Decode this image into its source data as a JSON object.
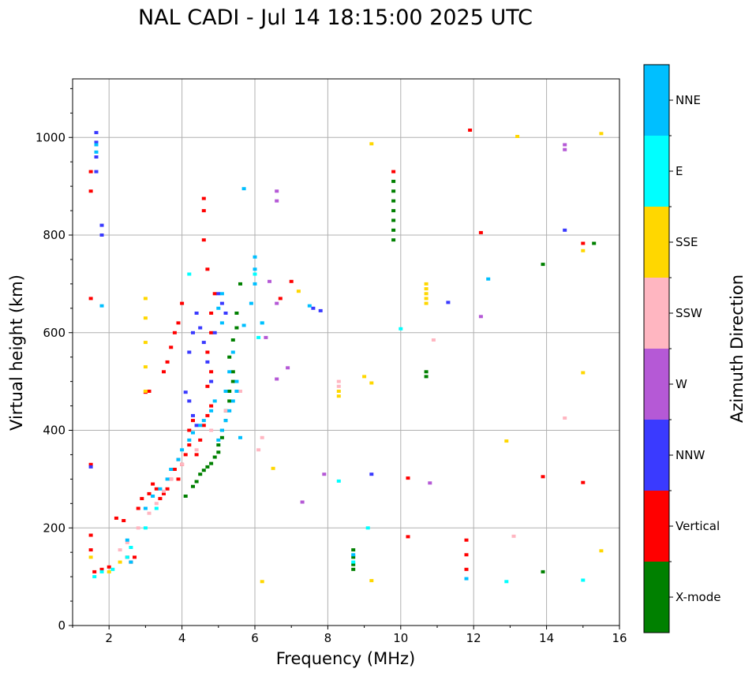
{
  "chart_data": {
    "type": "scatter",
    "title": "NAL CADI - Jul 14 18:15:00 2025 UTC",
    "xlabel": "Frequency (MHz)",
    "ylabel": "Virtual height (km)",
    "xlim": [
      1,
      16
    ],
    "ylim": [
      0,
      1120
    ],
    "xticks": [
      2,
      4,
      6,
      8,
      10,
      12,
      14,
      16
    ],
    "yticks": [
      0,
      200,
      400,
      600,
      800,
      1000
    ],
    "grid": true,
    "colorbar": {
      "title": "Azimuth Direction",
      "categories": [
        {
          "label": "X-mode",
          "color": "#008000"
        },
        {
          "label": "Vertical",
          "color": "#ff0000"
        },
        {
          "label": "NNW",
          "color": "#3a3aff"
        },
        {
          "label": "W",
          "color": "#b559d6"
        },
        {
          "label": "SSW",
          "color": "#ffb6c1"
        },
        {
          "label": "SSE",
          "color": "#ffd700"
        },
        {
          "label": "E",
          "color": "#00ffff"
        },
        {
          "label": "NNE",
          "color": "#00bfff"
        }
      ]
    },
    "series": [
      {
        "name": "X-mode",
        "points": [
          [
            4.1,
            265
          ],
          [
            4.3,
            285
          ],
          [
            4.4,
            295
          ],
          [
            4.5,
            310
          ],
          [
            4.6,
            318
          ],
          [
            4.7,
            325
          ],
          [
            4.8,
            332
          ],
          [
            4.9,
            345
          ],
          [
            5.0,
            355
          ],
          [
            5.0,
            370
          ],
          [
            5.1,
            385
          ],
          [
            5.1,
            400
          ],
          [
            5.2,
            420
          ],
          [
            5.2,
            440
          ],
          [
            5.3,
            460
          ],
          [
            5.3,
            480
          ],
          [
            5.4,
            500
          ],
          [
            5.4,
            520
          ],
          [
            5.3,
            550
          ],
          [
            5.4,
            585
          ],
          [
            5.5,
            610
          ],
          [
            5.5,
            640
          ],
          [
            5.6,
            700
          ],
          [
            9.8,
            790
          ],
          [
            9.8,
            810
          ],
          [
            9.8,
            830
          ],
          [
            9.8,
            850
          ],
          [
            9.8,
            870
          ],
          [
            9.8,
            890
          ],
          [
            9.8,
            910
          ],
          [
            10.7,
            510
          ],
          [
            10.7,
            520
          ],
          [
            8.7,
            115
          ],
          [
            8.7,
            125
          ],
          [
            8.7,
            140
          ],
          [
            8.7,
            155
          ],
          [
            13.9,
            110
          ],
          [
            13.9,
            740
          ],
          [
            15.3,
            783
          ]
        ]
      },
      {
        "name": "Vertical",
        "points": [
          [
            1.5,
            930
          ],
          [
            1.5,
            890
          ],
          [
            1.5,
            670
          ],
          [
            1.5,
            330
          ],
          [
            1.5,
            185
          ],
          [
            1.5,
            155
          ],
          [
            1.6,
            110
          ],
          [
            1.8,
            115
          ],
          [
            2.0,
            120
          ],
          [
            2.2,
            220
          ],
          [
            2.4,
            215
          ],
          [
            2.5,
            140
          ],
          [
            2.6,
            130
          ],
          [
            2.7,
            140
          ],
          [
            2.8,
            240
          ],
          [
            2.9,
            260
          ],
          [
            3.1,
            270
          ],
          [
            3.2,
            290
          ],
          [
            3.3,
            280
          ],
          [
            3.4,
            260
          ],
          [
            3.5,
            270
          ],
          [
            3.6,
            280
          ],
          [
            3.7,
            300
          ],
          [
            3.8,
            320
          ],
          [
            3.9,
            300
          ],
          [
            3.9,
            340
          ],
          [
            4.0,
            330
          ],
          [
            4.1,
            350
          ],
          [
            4.2,
            370
          ],
          [
            4.2,
            400
          ],
          [
            4.3,
            420
          ],
          [
            4.4,
            350
          ],
          [
            4.5,
            380
          ],
          [
            4.6,
            410
          ],
          [
            4.7,
            430
          ],
          [
            4.8,
            450
          ],
          [
            4.7,
            490
          ],
          [
            4.8,
            520
          ],
          [
            4.7,
            560
          ],
          [
            4.8,
            600
          ],
          [
            4.8,
            640
          ],
          [
            4.9,
            680
          ],
          [
            4.7,
            730
          ],
          [
            4.6,
            790
          ],
          [
            4.6,
            850
          ],
          [
            4.6,
            875
          ],
          [
            3.5,
            520
          ],
          [
            3.6,
            540
          ],
          [
            3.7,
            570
          ],
          [
            3.8,
            600
          ],
          [
            3.9,
            620
          ],
          [
            4.0,
            660
          ],
          [
            3.0,
            478
          ],
          [
            3.1,
            480
          ],
          [
            6.7,
            670
          ],
          [
            7.0,
            705
          ],
          [
            9.8,
            930
          ],
          [
            10.2,
            302
          ],
          [
            10.2,
            182
          ],
          [
            11.8,
            175
          ],
          [
            11.8,
            145
          ],
          [
            11.8,
            115
          ],
          [
            11.9,
            1015
          ],
          [
            12.2,
            805
          ],
          [
            13.9,
            305
          ],
          [
            15.0,
            293
          ],
          [
            15.0,
            783
          ]
        ]
      },
      {
        "name": "NNW",
        "points": [
          [
            1.65,
            1010
          ],
          [
            1.65,
            990
          ],
          [
            1.65,
            960
          ],
          [
            1.65,
            930
          ],
          [
            1.8,
            820
          ],
          [
            1.8,
            800
          ],
          [
            1.5,
            325
          ],
          [
            4.2,
            560
          ],
          [
            4.3,
            600
          ],
          [
            4.4,
            640
          ],
          [
            4.5,
            610
          ],
          [
            4.6,
            580
          ],
          [
            4.7,
            540
          ],
          [
            4.8,
            500
          ],
          [
            4.9,
            600
          ],
          [
            5.0,
            680
          ],
          [
            5.1,
            660
          ],
          [
            5.2,
            640
          ],
          [
            4.1,
            478
          ],
          [
            4.2,
            460
          ],
          [
            4.3,
            430
          ],
          [
            4.4,
            410
          ],
          [
            7.6,
            650
          ],
          [
            7.8,
            645
          ],
          [
            9.2,
            310
          ],
          [
            11.3,
            662
          ],
          [
            14.5,
            810
          ]
        ]
      },
      {
        "name": "W",
        "points": [
          [
            6.6,
            890
          ],
          [
            6.6,
            870
          ],
          [
            6.6,
            660
          ],
          [
            6.6,
            505
          ],
          [
            6.3,
            590
          ],
          [
            6.4,
            705
          ],
          [
            6.9,
            528
          ],
          [
            7.3,
            253
          ],
          [
            7.9,
            310
          ],
          [
            10.8,
            292
          ],
          [
            12.2,
            633
          ],
          [
            14.5,
            985
          ],
          [
            14.5,
            975
          ]
        ]
      },
      {
        "name": "SSW",
        "points": [
          [
            2.3,
            155
          ],
          [
            2.5,
            170
          ],
          [
            2.8,
            200
          ],
          [
            3.1,
            230
          ],
          [
            3.3,
            250
          ],
          [
            3.5,
            275
          ],
          [
            3.7,
            300
          ],
          [
            4.0,
            330
          ],
          [
            4.4,
            360
          ],
          [
            4.8,
            400
          ],
          [
            5.2,
            440
          ],
          [
            5.6,
            480
          ],
          [
            6.1,
            360
          ],
          [
            6.2,
            385
          ],
          [
            8.3,
            500
          ],
          [
            8.3,
            490
          ],
          [
            10.9,
            585
          ],
          [
            13.1,
            183
          ],
          [
            14.5,
            425
          ]
        ]
      },
      {
        "name": "SSE",
        "points": [
          [
            1.5,
            140
          ],
          [
            2.0,
            110
          ],
          [
            2.3,
            130
          ],
          [
            3.0,
            480
          ],
          [
            3.0,
            530
          ],
          [
            3.0,
            580
          ],
          [
            3.0,
            630
          ],
          [
            3.0,
            670
          ],
          [
            6.2,
            90
          ],
          [
            6.5,
            322
          ],
          [
            7.2,
            685
          ],
          [
            8.3,
            470
          ],
          [
            8.3,
            480
          ],
          [
            9.0,
            510
          ],
          [
            9.2,
            497
          ],
          [
            9.2,
            92
          ],
          [
            9.2,
            987
          ],
          [
            10.7,
            700
          ],
          [
            10.7,
            690
          ],
          [
            10.7,
            680
          ],
          [
            10.7,
            670
          ],
          [
            10.7,
            660
          ],
          [
            12.9,
            378
          ],
          [
            13.2,
            1002
          ],
          [
            15.0,
            768
          ],
          [
            15.0,
            518
          ],
          [
            15.5,
            1008
          ],
          [
            15.5,
            153
          ]
        ]
      },
      {
        "name": "E",
        "points": [
          [
            1.6,
            100
          ],
          [
            1.8,
            110
          ],
          [
            2.1,
            115
          ],
          [
            2.5,
            140
          ],
          [
            2.6,
            160
          ],
          [
            3.0,
            200
          ],
          [
            3.3,
            240
          ],
          [
            4.2,
            720
          ],
          [
            6.0,
            720
          ],
          [
            6.1,
            590
          ],
          [
            6.2,
            620
          ],
          [
            8.3,
            296
          ],
          [
            8.7,
            130
          ],
          [
            9.1,
            200
          ],
          [
            10.0,
            608
          ],
          [
            12.9,
            90
          ],
          [
            15.0,
            93
          ]
        ]
      },
      {
        "name": "NNE",
        "points": [
          [
            1.65,
            985
          ],
          [
            1.65,
            970
          ],
          [
            1.8,
            655
          ],
          [
            2.5,
            175
          ],
          [
            2.6,
            130
          ],
          [
            3.0,
            240
          ],
          [
            3.2,
            265
          ],
          [
            3.4,
            280
          ],
          [
            3.6,
            300
          ],
          [
            3.7,
            320
          ],
          [
            3.9,
            340
          ],
          [
            4.0,
            360
          ],
          [
            4.2,
            380
          ],
          [
            4.3,
            395
          ],
          [
            4.5,
            410
          ],
          [
            4.6,
            420
          ],
          [
            4.8,
            440
          ],
          [
            4.9,
            460
          ],
          [
            5.0,
            380
          ],
          [
            5.1,
            400
          ],
          [
            5.2,
            420
          ],
          [
            5.3,
            440
          ],
          [
            5.4,
            460
          ],
          [
            5.5,
            480
          ],
          [
            5.5,
            500
          ],
          [
            5.6,
            385
          ],
          [
            5.2,
            480
          ],
          [
            5.3,
            520
          ],
          [
            5.4,
            560
          ],
          [
            5.1,
            620
          ],
          [
            5.0,
            650
          ],
          [
            5.1,
            680
          ],
          [
            5.7,
            895
          ],
          [
            5.7,
            615
          ],
          [
            5.9,
            660
          ],
          [
            6.0,
            700
          ],
          [
            6.0,
            730
          ],
          [
            6.0,
            755
          ],
          [
            6.2,
            620
          ],
          [
            7.5,
            655
          ],
          [
            8.7,
            145
          ],
          [
            11.8,
            96
          ],
          [
            12.4,
            710
          ]
        ]
      }
    ]
  }
}
